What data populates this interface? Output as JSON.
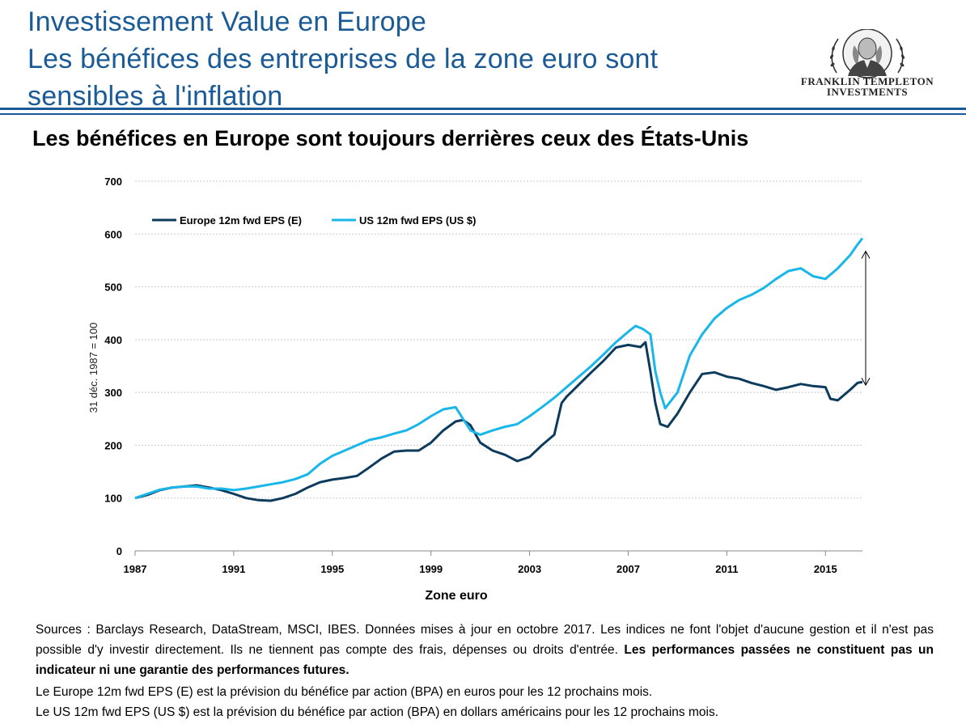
{
  "header": {
    "title_line1": "Investissement Value en Europe",
    "title_line2": "Les bénéfices des entreprises de la zone euro sont",
    "title_line3": "sensibles à l'inflation",
    "logo_line1": "FRANKLIN TEMPLETON",
    "logo_line2": "INVESTMENTS"
  },
  "subtitle": "Les bénéfices en Europe sont toujours derrières ceux des États-Unis",
  "chart_data": {
    "type": "line",
    "xlabel": "Zone euro",
    "ylabel": "31 déc. 1987 = 100",
    "xlim": [
      1987,
      2016.5
    ],
    "ylim": [
      0,
      700
    ],
    "x_ticks": [
      1987,
      1991,
      1995,
      1999,
      2003,
      2007,
      2011,
      2015
    ],
    "y_ticks": [
      0,
      100,
      200,
      300,
      400,
      500,
      600,
      700
    ],
    "grid": "horizontal",
    "legend_position": "top-left",
    "annotation": "double-headed arrow marking the gap between US and Europe at the end of the period",
    "series": [
      {
        "name": "Europe 12m fwd EPS (E)",
        "color": "#0d3b5e",
        "points": [
          [
            1987,
            100
          ],
          [
            1987.5,
            106
          ],
          [
            1988,
            115
          ],
          [
            1988.5,
            120
          ],
          [
            1989,
            122
          ],
          [
            1989.5,
            124
          ],
          [
            1990,
            120
          ],
          [
            1990.5,
            115
          ],
          [
            1991,
            108
          ],
          [
            1991.5,
            100
          ],
          [
            1992,
            96
          ],
          [
            1992.5,
            95
          ],
          [
            1993,
            100
          ],
          [
            1993.5,
            108
          ],
          [
            1994,
            120
          ],
          [
            1994.5,
            130
          ],
          [
            1995,
            135
          ],
          [
            1995.5,
            138
          ],
          [
            1996,
            142
          ],
          [
            1996.5,
            158
          ],
          [
            1997,
            175
          ],
          [
            1997.5,
            188
          ],
          [
            1998,
            190
          ],
          [
            1998.5,
            190
          ],
          [
            1999,
            205
          ],
          [
            1999.5,
            228
          ],
          [
            2000,
            245
          ],
          [
            2000.3,
            248
          ],
          [
            2000.6,
            238
          ],
          [
            2001,
            205
          ],
          [
            2001.5,
            190
          ],
          [
            2002,
            182
          ],
          [
            2002.5,
            170
          ],
          [
            2003,
            178
          ],
          [
            2003.5,
            200
          ],
          [
            2004,
            220
          ],
          [
            2004.3,
            280
          ],
          [
            2004.5,
            292
          ],
          [
            2005,
            315
          ],
          [
            2005.5,
            338
          ],
          [
            2006,
            360
          ],
          [
            2006.5,
            385
          ],
          [
            2007,
            390
          ],
          [
            2007.5,
            386
          ],
          [
            2007.7,
            395
          ],
          [
            2007.9,
            340
          ],
          [
            2008.1,
            280
          ],
          [
            2008.3,
            240
          ],
          [
            2008.6,
            235
          ],
          [
            2009,
            260
          ],
          [
            2009.5,
            300
          ],
          [
            2010,
            335
          ],
          [
            2010.5,
            338
          ],
          [
            2011,
            330
          ],
          [
            2011.5,
            326
          ],
          [
            2012,
            318
          ],
          [
            2012.5,
            312
          ],
          [
            2013,
            305
          ],
          [
            2013.5,
            310
          ],
          [
            2014,
            316
          ],
          [
            2014.5,
            312
          ],
          [
            2015,
            310
          ],
          [
            2015.2,
            288
          ],
          [
            2015.5,
            285
          ],
          [
            2016,
            305
          ],
          [
            2016.3,
            318
          ],
          [
            2016.5,
            320
          ]
        ]
      },
      {
        "name": "US 12m fwd EPS (US $)",
        "color": "#19b6e9",
        "points": [
          [
            1987,
            100
          ],
          [
            1987.5,
            108
          ],
          [
            1988,
            116
          ],
          [
            1988.5,
            120
          ],
          [
            1989,
            122
          ],
          [
            1989.5,
            122
          ],
          [
            1990,
            118
          ],
          [
            1990.5,
            118
          ],
          [
            1991,
            115
          ],
          [
            1991.5,
            118
          ],
          [
            1992,
            122
          ],
          [
            1992.5,
            126
          ],
          [
            1993,
            130
          ],
          [
            1993.5,
            136
          ],
          [
            1994,
            145
          ],
          [
            1994.5,
            165
          ],
          [
            1995,
            180
          ],
          [
            1995.5,
            190
          ],
          [
            1996,
            200
          ],
          [
            1996.5,
            210
          ],
          [
            1997,
            215
          ],
          [
            1997.5,
            222
          ],
          [
            1998,
            228
          ],
          [
            1998.5,
            240
          ],
          [
            1999,
            255
          ],
          [
            1999.5,
            268
          ],
          [
            2000,
            272
          ],
          [
            2000.3,
            250
          ],
          [
            2000.6,
            228
          ],
          [
            2001,
            220
          ],
          [
            2001.5,
            228
          ],
          [
            2002,
            235
          ],
          [
            2002.5,
            240
          ],
          [
            2003,
            255
          ],
          [
            2003.5,
            272
          ],
          [
            2004,
            290
          ],
          [
            2004.5,
            310
          ],
          [
            2005,
            330
          ],
          [
            2005.5,
            350
          ],
          [
            2006,
            372
          ],
          [
            2006.5,
            395
          ],
          [
            2007,
            415
          ],
          [
            2007.3,
            426
          ],
          [
            2007.6,
            420
          ],
          [
            2007.9,
            410
          ],
          [
            2008.1,
            340
          ],
          [
            2008.3,
            300
          ],
          [
            2008.5,
            270
          ],
          [
            2009,
            300
          ],
          [
            2009.5,
            370
          ],
          [
            2010,
            410
          ],
          [
            2010.5,
            440
          ],
          [
            2011,
            460
          ],
          [
            2011.5,
            475
          ],
          [
            2012,
            485
          ],
          [
            2012.5,
            498
          ],
          [
            2013,
            515
          ],
          [
            2013.5,
            530
          ],
          [
            2014,
            535
          ],
          [
            2014.5,
            520
          ],
          [
            2015,
            515
          ],
          [
            2015.5,
            535
          ],
          [
            2016,
            560
          ],
          [
            2016.3,
            580
          ],
          [
            2016.5,
            592
          ]
        ]
      }
    ]
  },
  "notes": {
    "p1_normal": "Sources : Barclays Research, DataStream, MSCI, IBES. Données mises à jour en octobre 2017. Les indices ne font l'objet d'aucune gestion et il n'est pas possible d'y investir directement. Ils ne tiennent pas compte des frais, dépenses ou droits d'entrée. ",
    "p1_bold": "Les performances passées ne constituent pas un indicateur ni une garantie des performances futures.",
    "p2": "Le Europe 12m fwd EPS (E) est la prévision du bénéfice par action (BPA) en euros pour les 12 prochains mois.",
    "p3": "Le US 12m fwd EPS (US $) est la prévision du bénéfice par action (BPA) en dollars américains pour les 12 prochains mois."
  }
}
